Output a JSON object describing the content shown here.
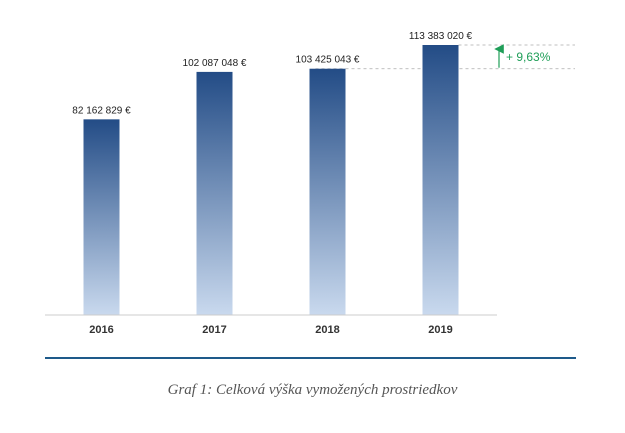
{
  "chart_data": {
    "type": "bar",
    "categories": [
      "2016",
      "2017",
      "2018",
      "2019"
    ],
    "values": [
      82162829,
      102087048,
      103425043,
      113383020
    ],
    "data_labels": [
      "82 162 829 €",
      "102 087 048 €",
      "103 425 043 €",
      "113 383 020 €"
    ],
    "ylim": [
      0,
      113383020
    ],
    "grid": false,
    "annotation": {
      "text": "+ 9,63%",
      "from_category": "2018",
      "to_category": "2019",
      "color": "#1f9e58"
    },
    "bar_gradient": {
      "top": "#234c86",
      "bottom": "#c9d9ee"
    }
  },
  "caption": "Graf 1: Celková výška vymožených prostriedkov",
  "colors": {
    "rule": "#1e5a8a",
    "baseline": "#cccccc",
    "guide": "#aaaaaa"
  }
}
